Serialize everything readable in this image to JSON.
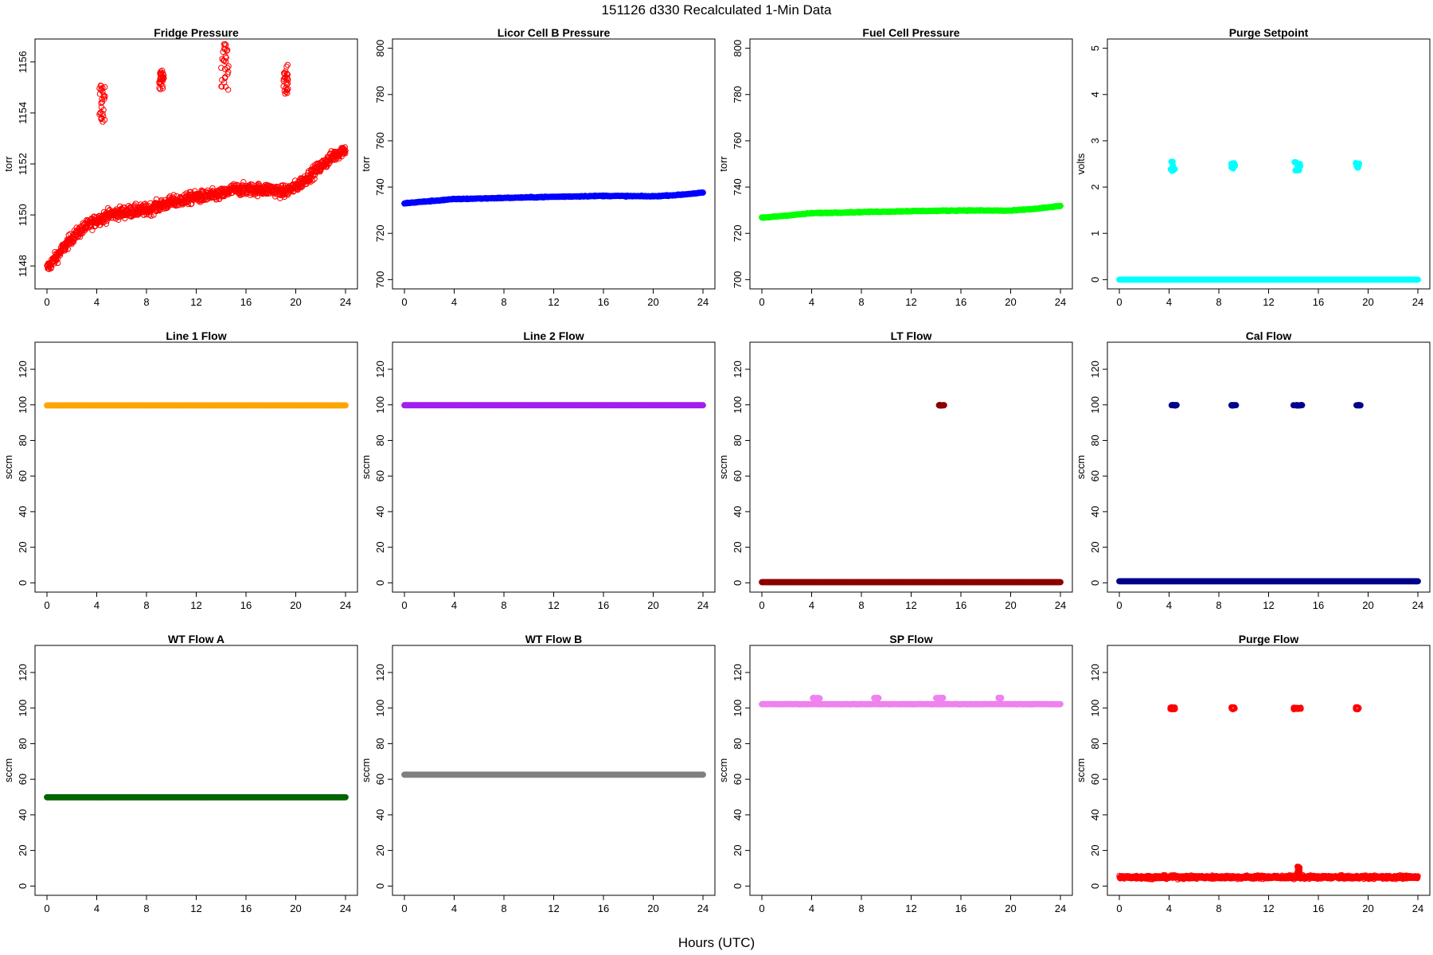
{
  "figure": {
    "title": "151126   d330   Recalculated 1-Min Data",
    "xlabel": "Hours (UTC)"
  },
  "chart_data": [
    {
      "type": "scatter",
      "title": "Fridge Pressure",
      "ylabel": "torr",
      "xlim": [
        -0.96,
        24.96
      ],
      "ylim": [
        1147.1,
        1156.9
      ],
      "xticks": [
        0,
        4,
        8,
        12,
        16,
        20,
        24
      ],
      "yticks": [
        1148,
        1150,
        1152,
        1154,
        1156
      ],
      "marker": "open",
      "series": [
        {
          "color": "#ff0000",
          "baseline_points": [
            [
              0,
              1147.9
            ],
            [
              1,
              1148.5
            ],
            [
              2,
              1149.1
            ],
            [
              3,
              1149.5
            ],
            [
              4,
              1149.8
            ],
            [
              5,
              1150.0
            ],
            [
              6,
              1150.1
            ],
            [
              8,
              1150.2
            ],
            [
              10,
              1150.5
            ],
            [
              12,
              1150.7
            ],
            [
              14,
              1150.8
            ],
            [
              15,
              1151.0
            ],
            [
              16,
              1151.0
            ],
            [
              18,
              1151.0
            ],
            [
              19,
              1150.9
            ],
            [
              20,
              1151.1
            ],
            [
              21,
              1151.5
            ],
            [
              22,
              1151.9
            ],
            [
              23,
              1152.3
            ],
            [
              24,
              1152.6
            ]
          ],
          "spread": 0.4,
          "clusters": [
            {
              "x": [
                4.2,
                4.7
              ],
              "y": [
                1153.6,
                1155.1
              ]
            },
            {
              "x": [
                9.0,
                9.4
              ],
              "y": [
                1154.9,
                1155.7
              ]
            },
            {
              "x": [
                14.0,
                14.6
              ],
              "y": [
                1154.9,
                1156.8
              ]
            },
            {
              "x": [
                19.0,
                19.4
              ],
              "y": [
                1154.7,
                1155.9
              ]
            }
          ]
        }
      ]
    },
    {
      "type": "scatter",
      "title": "Licor Cell B Pressure",
      "ylabel": "torr",
      "xlim": [
        -0.96,
        24.96
      ],
      "ylim": [
        696,
        804
      ],
      "xticks": [
        0,
        4,
        8,
        12,
        16,
        20,
        24
      ],
      "yticks": [
        700,
        720,
        740,
        760,
        780,
        800
      ],
      "marker": "filled",
      "series": [
        {
          "color": "#0000ff",
          "baseline_points": [
            [
              0,
              733.0
            ],
            [
              4,
              734.8
            ],
            [
              8,
              735.3
            ],
            [
              12,
              735.8
            ],
            [
              16,
              736.2
            ],
            [
              20,
              736.0
            ],
            [
              22,
              736.6
            ],
            [
              24,
              737.6
            ]
          ],
          "spread": 0.3,
          "clusters": []
        }
      ]
    },
    {
      "type": "scatter",
      "title": "Fuel Cell Pressure",
      "ylabel": "torr",
      "xlim": [
        -0.96,
        24.96
      ],
      "ylim": [
        696,
        804
      ],
      "xticks": [
        0,
        4,
        8,
        12,
        16,
        20,
        24
      ],
      "yticks": [
        700,
        720,
        740,
        760,
        780,
        800
      ],
      "marker": "filled",
      "series": [
        {
          "color": "#00ff00",
          "baseline_points": [
            [
              0,
              726.7
            ],
            [
              4,
              728.7
            ],
            [
              8,
              729.2
            ],
            [
              12,
              729.6
            ],
            [
              16,
              729.9
            ],
            [
              20,
              729.8
            ],
            [
              22,
              730.6
            ],
            [
              24,
              731.8
            ]
          ],
          "spread": 0.3,
          "clusters": []
        }
      ]
    },
    {
      "type": "scatter",
      "title": "Purge Setpoint",
      "ylabel": "volts",
      "xlim": [
        -0.96,
        24.96
      ],
      "ylim": [
        -0.2,
        5.2
      ],
      "xticks": [
        0,
        4,
        8,
        12,
        16,
        20,
        24
      ],
      "yticks": [
        0,
        1,
        2,
        3,
        4,
        5
      ],
      "marker": "filled",
      "series": [
        {
          "color": "#00ffff",
          "baseline_points": [
            [
              0,
              0.0
            ],
            [
              24,
              0.0
            ]
          ],
          "spread": 0.0,
          "clusters": [
            {
              "x": [
                4.1,
                4.5
              ],
              "y": [
                2.35,
                2.55
              ]
            },
            {
              "x": [
                9.0,
                9.3
              ],
              "y": [
                2.4,
                2.52
              ]
            },
            {
              "x": [
                14.0,
                14.6
              ],
              "y": [
                2.33,
                2.55
              ]
            },
            {
              "x": [
                19.0,
                19.3
              ],
              "y": [
                2.4,
                2.52
              ]
            }
          ]
        }
      ]
    },
    {
      "type": "scatter",
      "title": "Line 1 Flow",
      "ylabel": "sccm",
      "xlim": [
        -0.96,
        24.96
      ],
      "ylim": [
        -5.2,
        135.2
      ],
      "xticks": [
        0,
        4,
        8,
        12,
        16,
        20,
        24
      ],
      "yticks": [
        0,
        20,
        40,
        60,
        80,
        100,
        120
      ],
      "marker": "filled",
      "series": [
        {
          "color": "#ffa500",
          "baseline_points": [
            [
              0,
              99.7
            ],
            [
              24,
              99.7
            ]
          ],
          "spread": 0.0,
          "clusters": []
        }
      ]
    },
    {
      "type": "scatter",
      "title": "Line 2 Flow",
      "ylabel": "sccm",
      "xlim": [
        -0.96,
        24.96
      ],
      "ylim": [
        -5.2,
        135.2
      ],
      "xticks": [
        0,
        4,
        8,
        12,
        16,
        20,
        24
      ],
      "yticks": [
        0,
        20,
        40,
        60,
        80,
        100,
        120
      ],
      "marker": "filled",
      "series": [
        {
          "color": "#a020f0",
          "baseline_points": [
            [
              0,
              99.8
            ],
            [
              24,
              99.8
            ]
          ],
          "spread": 0.0,
          "clusters": []
        }
      ]
    },
    {
      "type": "scatter",
      "title": "LT Flow",
      "ylabel": "sccm",
      "xlim": [
        -0.96,
        24.96
      ],
      "ylim": [
        -5.2,
        135.2
      ],
      "xticks": [
        0,
        4,
        8,
        12,
        16,
        20,
        24
      ],
      "yticks": [
        0,
        20,
        40,
        60,
        80,
        100,
        120
      ],
      "marker": "filled",
      "series": [
        {
          "color": "#8b0000",
          "baseline_points": [
            [
              0,
              0.4
            ],
            [
              24,
              0.4
            ]
          ],
          "spread": 0.0,
          "clusters": [
            {
              "x": [
                14.2,
                14.7
              ],
              "y": [
                99.6,
                99.9
              ]
            }
          ]
        }
      ]
    },
    {
      "type": "scatter",
      "title": "Cal Flow",
      "ylabel": "sccm",
      "xlim": [
        -0.96,
        24.96
      ],
      "ylim": [
        -5.2,
        135.2
      ],
      "xticks": [
        0,
        4,
        8,
        12,
        16,
        20,
        24
      ],
      "yticks": [
        0,
        20,
        40,
        60,
        80,
        100,
        120
      ],
      "marker": "filled",
      "series": [
        {
          "color": "#00008b",
          "baseline_points": [
            [
              0,
              0.9
            ],
            [
              24,
              0.9
            ]
          ],
          "spread": 0.0,
          "clusters": [
            {
              "x": [
                4.2,
                4.6
              ],
              "y": [
                99.6,
                99.9
              ]
            },
            {
              "x": [
                9.0,
                9.4
              ],
              "y": [
                99.6,
                99.9
              ]
            },
            {
              "x": [
                14.0,
                14.7
              ],
              "y": [
                99.6,
                99.9
              ]
            },
            {
              "x": [
                19.0,
                19.4
              ],
              "y": [
                99.6,
                99.9
              ]
            }
          ]
        }
      ]
    },
    {
      "type": "scatter",
      "title": "WT Flow A",
      "ylabel": "sccm",
      "xlim": [
        -0.96,
        24.96
      ],
      "ylim": [
        -5.2,
        135.2
      ],
      "xticks": [
        0,
        4,
        8,
        12,
        16,
        20,
        24
      ],
      "yticks": [
        0,
        20,
        40,
        60,
        80,
        100,
        120
      ],
      "marker": "filled",
      "series": [
        {
          "color": "#006400",
          "baseline_points": [
            [
              0,
              49.9
            ],
            [
              24,
              49.9
            ]
          ],
          "spread": 0.0,
          "clusters": []
        }
      ]
    },
    {
      "type": "scatter",
      "title": "WT Flow B",
      "ylabel": "sccm",
      "xlim": [
        -0.96,
        24.96
      ],
      "ylim": [
        -5.2,
        135.2
      ],
      "xticks": [
        0,
        4,
        8,
        12,
        16,
        20,
        24
      ],
      "yticks": [
        0,
        20,
        40,
        60,
        80,
        100,
        120
      ],
      "marker": "filled",
      "series": [
        {
          "color": "#808080",
          "baseline_points": [
            [
              0,
              62.6
            ],
            [
              24,
              62.6
            ]
          ],
          "spread": 0.0,
          "clusters": []
        }
      ]
    },
    {
      "type": "scatter",
      "title": "SP Flow",
      "ylabel": "sccm",
      "xlim": [
        -0.96,
        24.96
      ],
      "ylim": [
        -5.2,
        135.2
      ],
      "xticks": [
        0,
        4,
        8,
        12,
        16,
        20,
        24
      ],
      "yticks": [
        0,
        20,
        40,
        60,
        80,
        100,
        120
      ],
      "marker": "filled",
      "series": [
        {
          "color": "#ee82ee",
          "baseline_points": [
            [
              0,
              102.2
            ],
            [
              24,
              102.2
            ]
          ],
          "spread": 0.2,
          "clusters": [
            {
              "x": [
                4.1,
                4.7
              ],
              "y": [
                105.4,
                105.8
              ]
            },
            {
              "x": [
                9.0,
                9.4
              ],
              "y": [
                105.4,
                105.8
              ]
            },
            {
              "x": [
                14.0,
                14.7
              ],
              "y": [
                105.4,
                105.8
              ]
            },
            {
              "x": [
                19.0,
                19.4
              ],
              "y": [
                105.4,
                105.8
              ]
            }
          ]
        }
      ]
    },
    {
      "type": "scatter",
      "title": "Purge Flow",
      "ylabel": "sccm",
      "xlim": [
        -0.96,
        24.96
      ],
      "ylim": [
        -5.2,
        135.2
      ],
      "xticks": [
        0,
        4,
        8,
        12,
        16,
        20,
        24
      ],
      "yticks": [
        0,
        20,
        40,
        60,
        80,
        100,
        120
      ],
      "marker": "open",
      "series": [
        {
          "color": "#ff0000",
          "baseline_points": [
            [
              0,
              5.0
            ],
            [
              24,
              5.0
            ]
          ],
          "spread": 1.6,
          "clusters": [
            {
              "x": [
                4.1,
                4.5
              ],
              "y": [
                99.3,
                100.5
              ]
            },
            {
              "x": [
                9.0,
                9.3
              ],
              "y": [
                99.3,
                100.5
              ]
            },
            {
              "x": [
                14.0,
                14.6
              ],
              "y": [
                99.3,
                100.3
              ]
            },
            {
              "x": [
                19.0,
                19.3
              ],
              "y": [
                99.3,
                100.5
              ]
            },
            {
              "x": [
                14.3,
                14.5
              ],
              "y": [
                7.0,
                11.0
              ]
            }
          ]
        }
      ]
    }
  ]
}
